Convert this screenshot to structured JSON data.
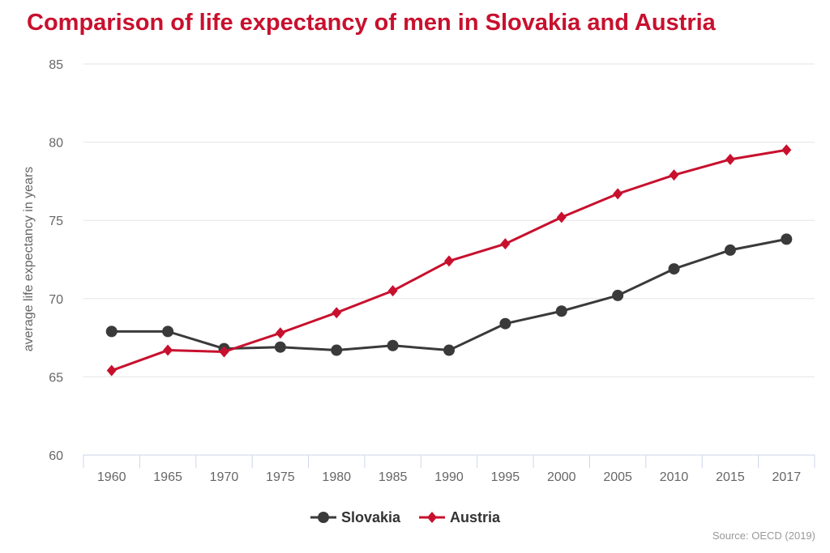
{
  "chart_data": {
    "type": "line",
    "title": "Comparison of life expectancy of men in Slovakia and Austria",
    "ylabel": "average life expectancy in years",
    "xlabel": "",
    "categories": [
      "1960",
      "1965",
      "1970",
      "1975",
      "1980",
      "1985",
      "1990",
      "1995",
      "2000",
      "2005",
      "2010",
      "2015",
      "2017"
    ],
    "ylim": [
      60,
      85
    ],
    "yticks": [
      60,
      65,
      70,
      75,
      80,
      85
    ],
    "grid": true,
    "legend": "bottom",
    "series": [
      {
        "name": "Slovakia",
        "color": "#3a3a3a",
        "marker": "circle",
        "values": [
          67.9,
          67.9,
          66.8,
          66.9,
          66.7,
          67.0,
          66.7,
          68.4,
          69.2,
          70.2,
          71.9,
          73.1,
          73.8
        ]
      },
      {
        "name": "Austria",
        "color": "#c8102e",
        "marker": "diamond",
        "values": [
          65.4,
          66.7,
          66.6,
          67.8,
          69.1,
          70.5,
          72.4,
          73.5,
          75.2,
          76.7,
          77.9,
          78.9,
          79.5
        ]
      }
    ],
    "source": "Source: OECD (2019)"
  }
}
